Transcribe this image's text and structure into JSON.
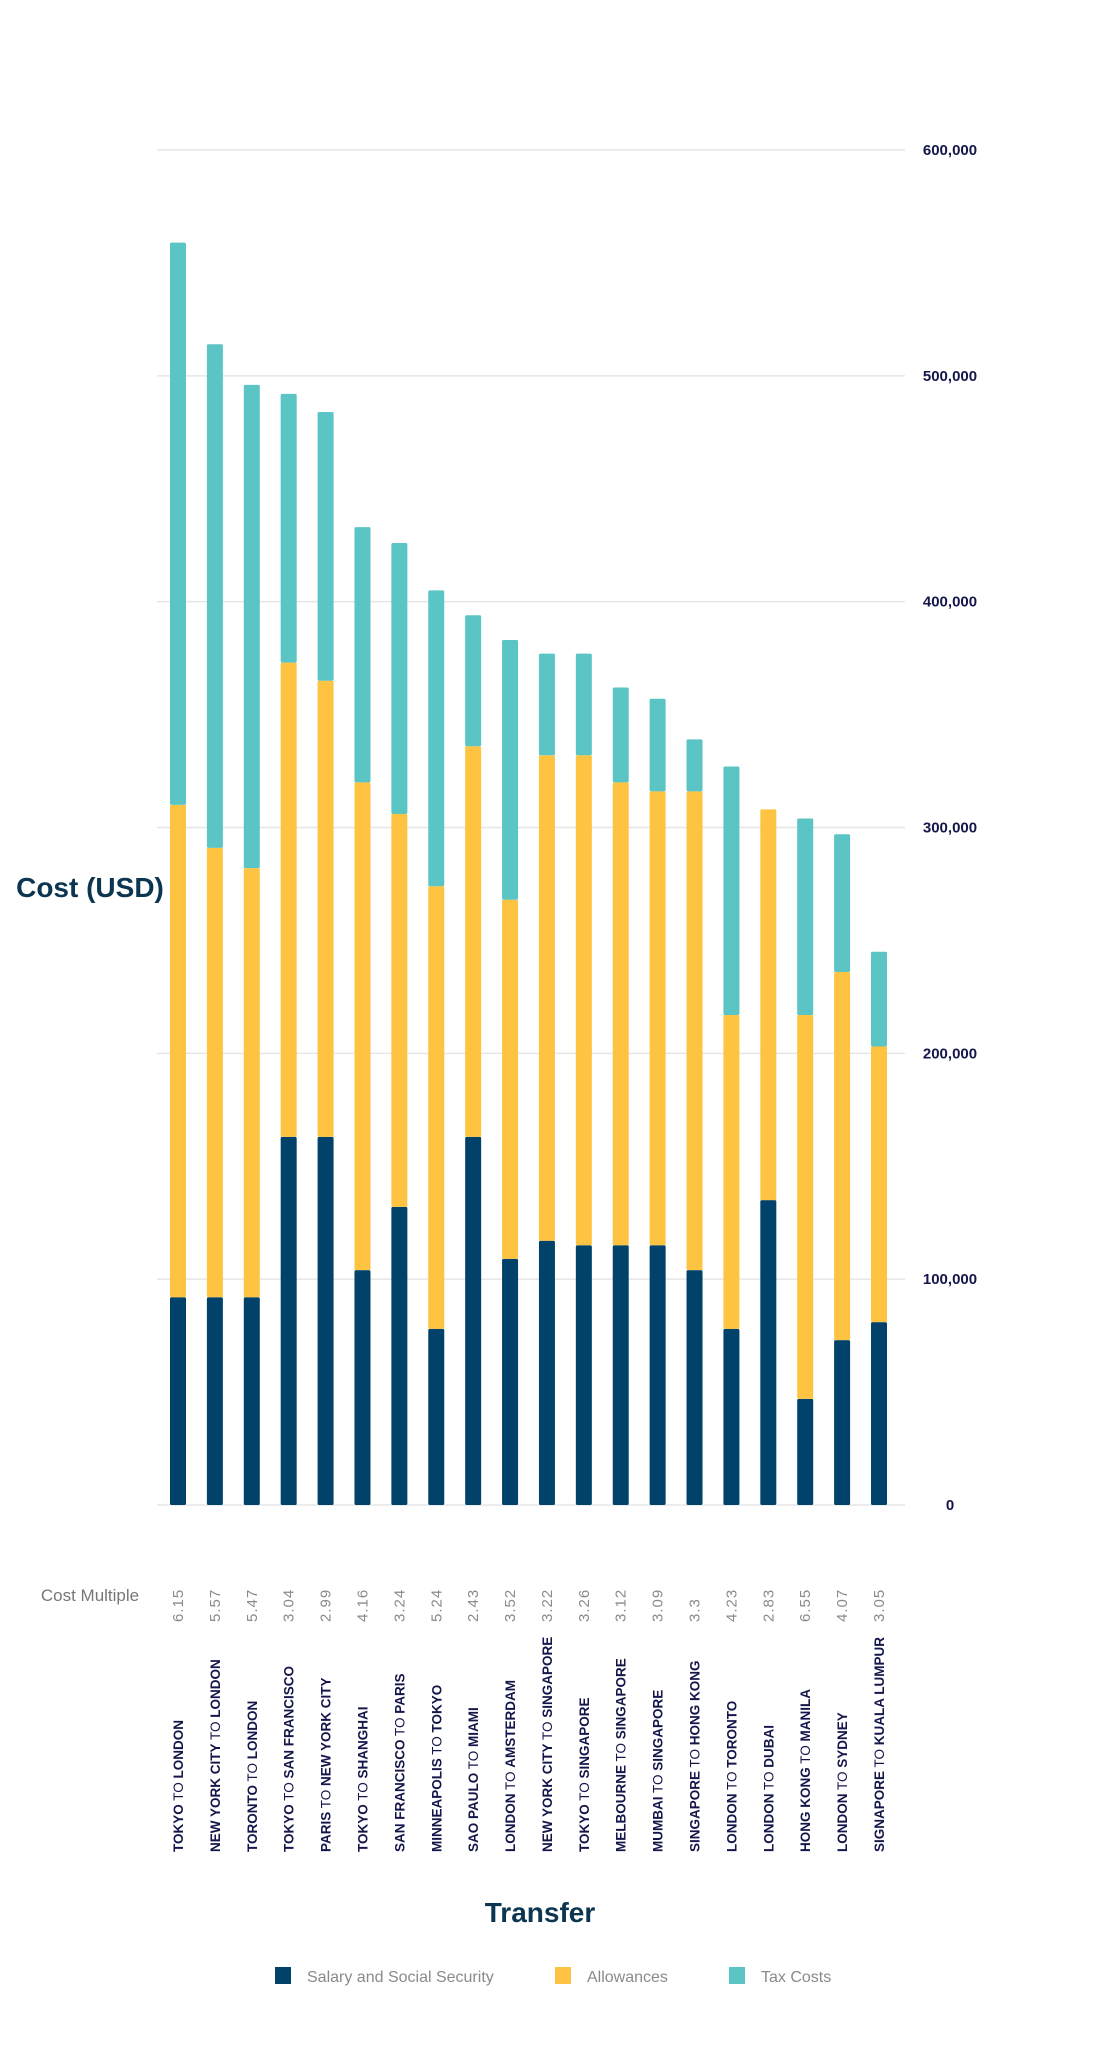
{
  "chart_data": {
    "type": "bar",
    "stacked": true,
    "orientation": "vertical",
    "xlabel": "Transfer",
    "ylabel": "Cost (USD)",
    "ylim": [
      0,
      600000
    ],
    "yticks": [
      "0",
      "100,000",
      "200,000",
      "300,000",
      "400,000",
      "500,000",
      "600,000"
    ],
    "ytick_values": [
      0,
      100000,
      200000,
      300000,
      400000,
      500000,
      600000
    ],
    "yaxis_position": "right",
    "grid": true,
    "legend_position": "bottom",
    "connector_word": "TO",
    "categories": [
      {
        "from": "TOKYO",
        "to": "LONDON"
      },
      {
        "from": "NEW YORK CITY",
        "to": "LONDON"
      },
      {
        "from": "TORONTO",
        "to": "LONDON"
      },
      {
        "from": "TOKYO",
        "to": "SAN FRANCISCO"
      },
      {
        "from": "PARIS",
        "to": "NEW YORK CITY"
      },
      {
        "from": "TOKYO",
        "to": "SHANGHAI"
      },
      {
        "from": "SAN FRANCISCO",
        "to": "PARIS"
      },
      {
        "from": "MINNEAPOLIS",
        "to": "TOKYO"
      },
      {
        "from": "SAO PAULO",
        "to": "MIAMI"
      },
      {
        "from": "LONDON",
        "to": "AMSTERDAM"
      },
      {
        "from": "NEW YORK CITY",
        "to": "SINGAPORE"
      },
      {
        "from": "TOKYO",
        "to": "SINGAPORE"
      },
      {
        "from": "MELBOURNE",
        "to": "SINGAPORE"
      },
      {
        "from": "MUMBAI",
        "to": "SINGAPORE"
      },
      {
        "from": "SINGAPORE",
        "to": "HONG KONG"
      },
      {
        "from": "LONDON",
        "to": "TORONTO"
      },
      {
        "from": "LONDON",
        "to": "DUBAI"
      },
      {
        "from": "HONG KONG",
        "to": "MANILA"
      },
      {
        "from": "LONDON",
        "to": "SYDNEY"
      },
      {
        "from": "SIGNAPORE",
        "to": "KUALA LUMPUR"
      }
    ],
    "series": [
      {
        "name": "Salary and Social Security",
        "color": "#01426a",
        "values": [
          92000,
          92000,
          92000,
          163000,
          163000,
          104000,
          132000,
          78000,
          163000,
          109000,
          117000,
          115000,
          115000,
          115000,
          104000,
          78000,
          135000,
          47000,
          73000,
          81000
        ]
      },
      {
        "name": "Allowances",
        "color": "#fec340",
        "values": [
          218000,
          199000,
          190000,
          210000,
          202000,
          216000,
          174000,
          196000,
          173000,
          159000,
          215000,
          217000,
          205000,
          201000,
          212000,
          139000,
          173000,
          170000,
          163000,
          122000
        ]
      },
      {
        "name": "Tax Costs",
        "color": "#5bc4c4",
        "values": [
          249000,
          223000,
          214000,
          119000,
          119000,
          113000,
          120000,
          131000,
          58000,
          115000,
          45000,
          45000,
          42000,
          41000,
          23000,
          110000,
          0,
          87000,
          61000,
          42000
        ]
      }
    ],
    "cost_multiple_label": "Cost Multiple",
    "cost_multiple": [
      "6.15",
      "5.57",
      "5.47",
      "3.04",
      "2.99",
      "4.16",
      "3.24",
      "5.24",
      "2.43",
      "3.52",
      "3.22",
      "3.26",
      "3.12",
      "3.09",
      "3.3",
      "4.23",
      "2.83",
      "6.55",
      "4.07",
      "3.05"
    ]
  }
}
